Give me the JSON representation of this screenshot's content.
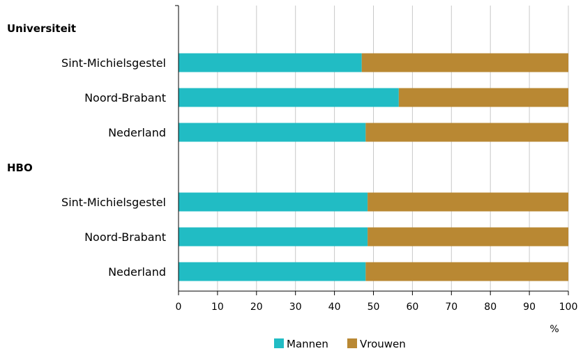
{
  "chart_data": {
    "type": "bar",
    "orientation": "horizontal",
    "stacked": true,
    "x_unit_label": "%",
    "xlim": [
      0,
      100
    ],
    "x_ticks": [
      0,
      10,
      20,
      30,
      40,
      50,
      60,
      70,
      80,
      90,
      100
    ],
    "grid": "vertical",
    "legend_position": "bottom-center",
    "groups": [
      {
        "label": "Universiteit",
        "categories": [
          "Sint-Michielsgestel",
          "Noord-Brabant",
          "Nederland"
        ],
        "series": [
          {
            "name": "Mannen",
            "values": [
              47,
              56.5,
              48
            ]
          },
          {
            "name": "Vrouwen",
            "values": [
              53,
              43.5,
              52
            ]
          }
        ]
      },
      {
        "label": "HBO",
        "categories": [
          "Sint-Michielsgestel",
          "Noord-Brabant",
          "Nederland"
        ],
        "series": [
          {
            "name": "Mannen",
            "values": [
              48.5,
              48.5,
              48
            ]
          },
          {
            "name": "Vrouwen",
            "values": [
              51.5,
              51.5,
              52
            ]
          }
        ]
      }
    ],
    "series_names": [
      "Mannen",
      "Vrouwen"
    ],
    "colors": {
      "Mannen": "#21bcc4",
      "Vrouwen": "#b98833"
    }
  }
}
